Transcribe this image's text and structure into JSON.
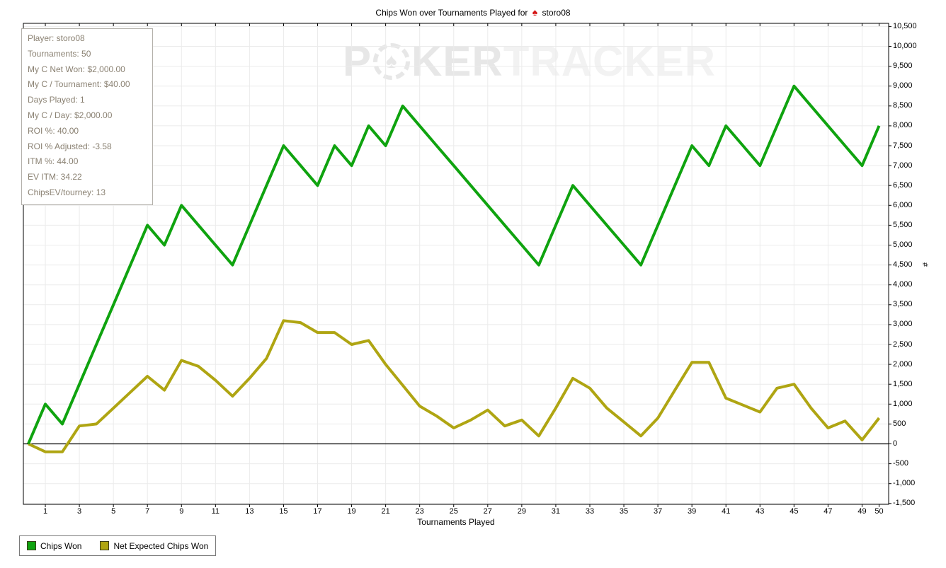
{
  "title": {
    "prefix": "Chips Won over Tournaments Played for",
    "player": "storo08"
  },
  "icons": {
    "spade": "♠"
  },
  "watermark": {
    "p": "P",
    "ker": "KER",
    "tracker": "TRACKER"
  },
  "info_box": {
    "lines": [
      "Player: storo08",
      "Tournaments: 50",
      "My C Net Won: $2,000.00",
      "My C / Tournament: $40.00",
      "Days Played: 1",
      "My C / Day: $2,000.00",
      "ROI %: 40.00",
      "ROI % Adjusted: -3.58",
      "ITM %: 44.00",
      "EV ITM: 34.22",
      "ChipsEV/tourney: 13"
    ]
  },
  "chart_data": {
    "type": "line",
    "title": "Chips Won over Tournaments Played for storo08",
    "xlabel": "Tournaments Played",
    "ylabel": "#",
    "grid": true,
    "legend_position": "bottom-left",
    "x_range": [
      0,
      50
    ],
    "y_range": [
      -1500,
      10500
    ],
    "y_tick_step": 500,
    "x_ticks": [
      1,
      3,
      5,
      7,
      9,
      11,
      13,
      15,
      17,
      19,
      21,
      23,
      25,
      27,
      29,
      31,
      33,
      35,
      37,
      39,
      41,
      43,
      45,
      47,
      49,
      50
    ],
    "x": [
      0,
      1,
      2,
      3,
      4,
      5,
      6,
      7,
      8,
      9,
      10,
      11,
      12,
      13,
      14,
      15,
      16,
      17,
      18,
      19,
      20,
      21,
      22,
      23,
      24,
      25,
      26,
      27,
      28,
      29,
      30,
      31,
      32,
      33,
      34,
      35,
      36,
      37,
      38,
      39,
      40,
      41,
      42,
      43,
      44,
      45,
      46,
      47,
      48,
      49,
      50
    ],
    "series": [
      {
        "name": "Chips Won",
        "color": "#0FA30F",
        "values": [
          0,
          1000,
          500,
          1500,
          2500,
          3500,
          4500,
          5500,
          5000,
          6000,
          5500,
          5000,
          4500,
          5500,
          6500,
          7500,
          7000,
          6500,
          7500,
          7000,
          8000,
          7500,
          8500,
          8000,
          7500,
          7000,
          6500,
          6000,
          5500,
          5000,
          4500,
          5500,
          6500,
          6000,
          5500,
          5000,
          4500,
          5500,
          6500,
          7500,
          7000,
          8000,
          7500,
          7000,
          8000,
          9000,
          8500,
          8000,
          7500,
          7000,
          8000
        ]
      },
      {
        "name": "Net Expected Chips Won",
        "color": "#AFA512",
        "values": [
          0,
          -200,
          -200,
          450,
          500,
          900,
          1300,
          1700,
          1350,
          2100,
          1950,
          1600,
          1200,
          1650,
          2150,
          3100,
          3050,
          2800,
          2800,
          2500,
          2600,
          2000,
          1475,
          950,
          700,
          400,
          600,
          850,
          450,
          600,
          200,
          900,
          1650,
          1400,
          900,
          550,
          200,
          650,
          1350,
          2050,
          2050,
          1150,
          975,
          800,
          1400,
          1500,
          900,
          400,
          575,
          100,
          650
        ]
      }
    ]
  },
  "legend": {
    "items": [
      {
        "label": "Chips Won",
        "color": "#0FA30F"
      },
      {
        "label": "Net Expected Chips Won",
        "color": "#AFA512"
      }
    ]
  },
  "colors": {
    "grid": "#ebebeb",
    "axis": "#000000",
    "zero_line": "#000000",
    "info_text": "#8a8172",
    "spade": "#d41414"
  }
}
